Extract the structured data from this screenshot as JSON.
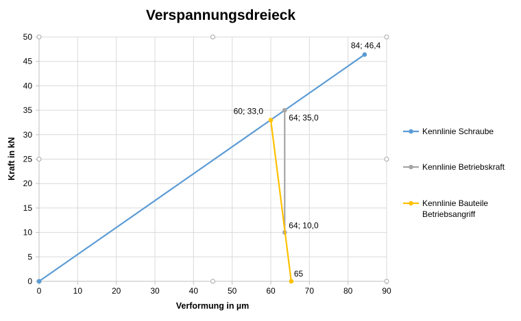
{
  "chart_data": {
    "type": "scatter",
    "title": "Verspannungsdreieck",
    "xlabel": "Verformung in µm",
    "ylabel": "Kraft in kN",
    "xlim": [
      0,
      90
    ],
    "ylim": [
      0,
      50
    ],
    "x_ticks": [
      "0",
      "10",
      "20",
      "30",
      "40",
      "50",
      "60",
      "70",
      "80",
      "90"
    ],
    "y_ticks": [
      "0",
      "5",
      "10",
      "15",
      "20",
      "25",
      "30",
      "35",
      "40",
      "45",
      "50"
    ],
    "grid": true,
    "legend_position": "right",
    "series": [
      {
        "name": "Kennlinie Schraube",
        "color": "#5b9bd5",
        "points": [
          [
            0,
            0
          ],
          [
            84.3,
            46.4
          ]
        ],
        "labels": [
          "",
          "84; 46,4"
        ]
      },
      {
        "name": "Kennlinie Betriebskraft",
        "color": "#a5a5a5",
        "points": [
          [
            63.6,
            35.0
          ],
          [
            63.6,
            10.0
          ]
        ],
        "labels": [
          "64; 35,0",
          "64; 10,0"
        ]
      },
      {
        "name": "Kennlinie Bauteile Betriebsangriff",
        "color": "#ffc000",
        "points": [
          [
            60.0,
            33.0
          ],
          [
            65.3,
            0
          ]
        ],
        "labels": [
          "60; 33,0",
          "65"
        ]
      }
    ]
  }
}
